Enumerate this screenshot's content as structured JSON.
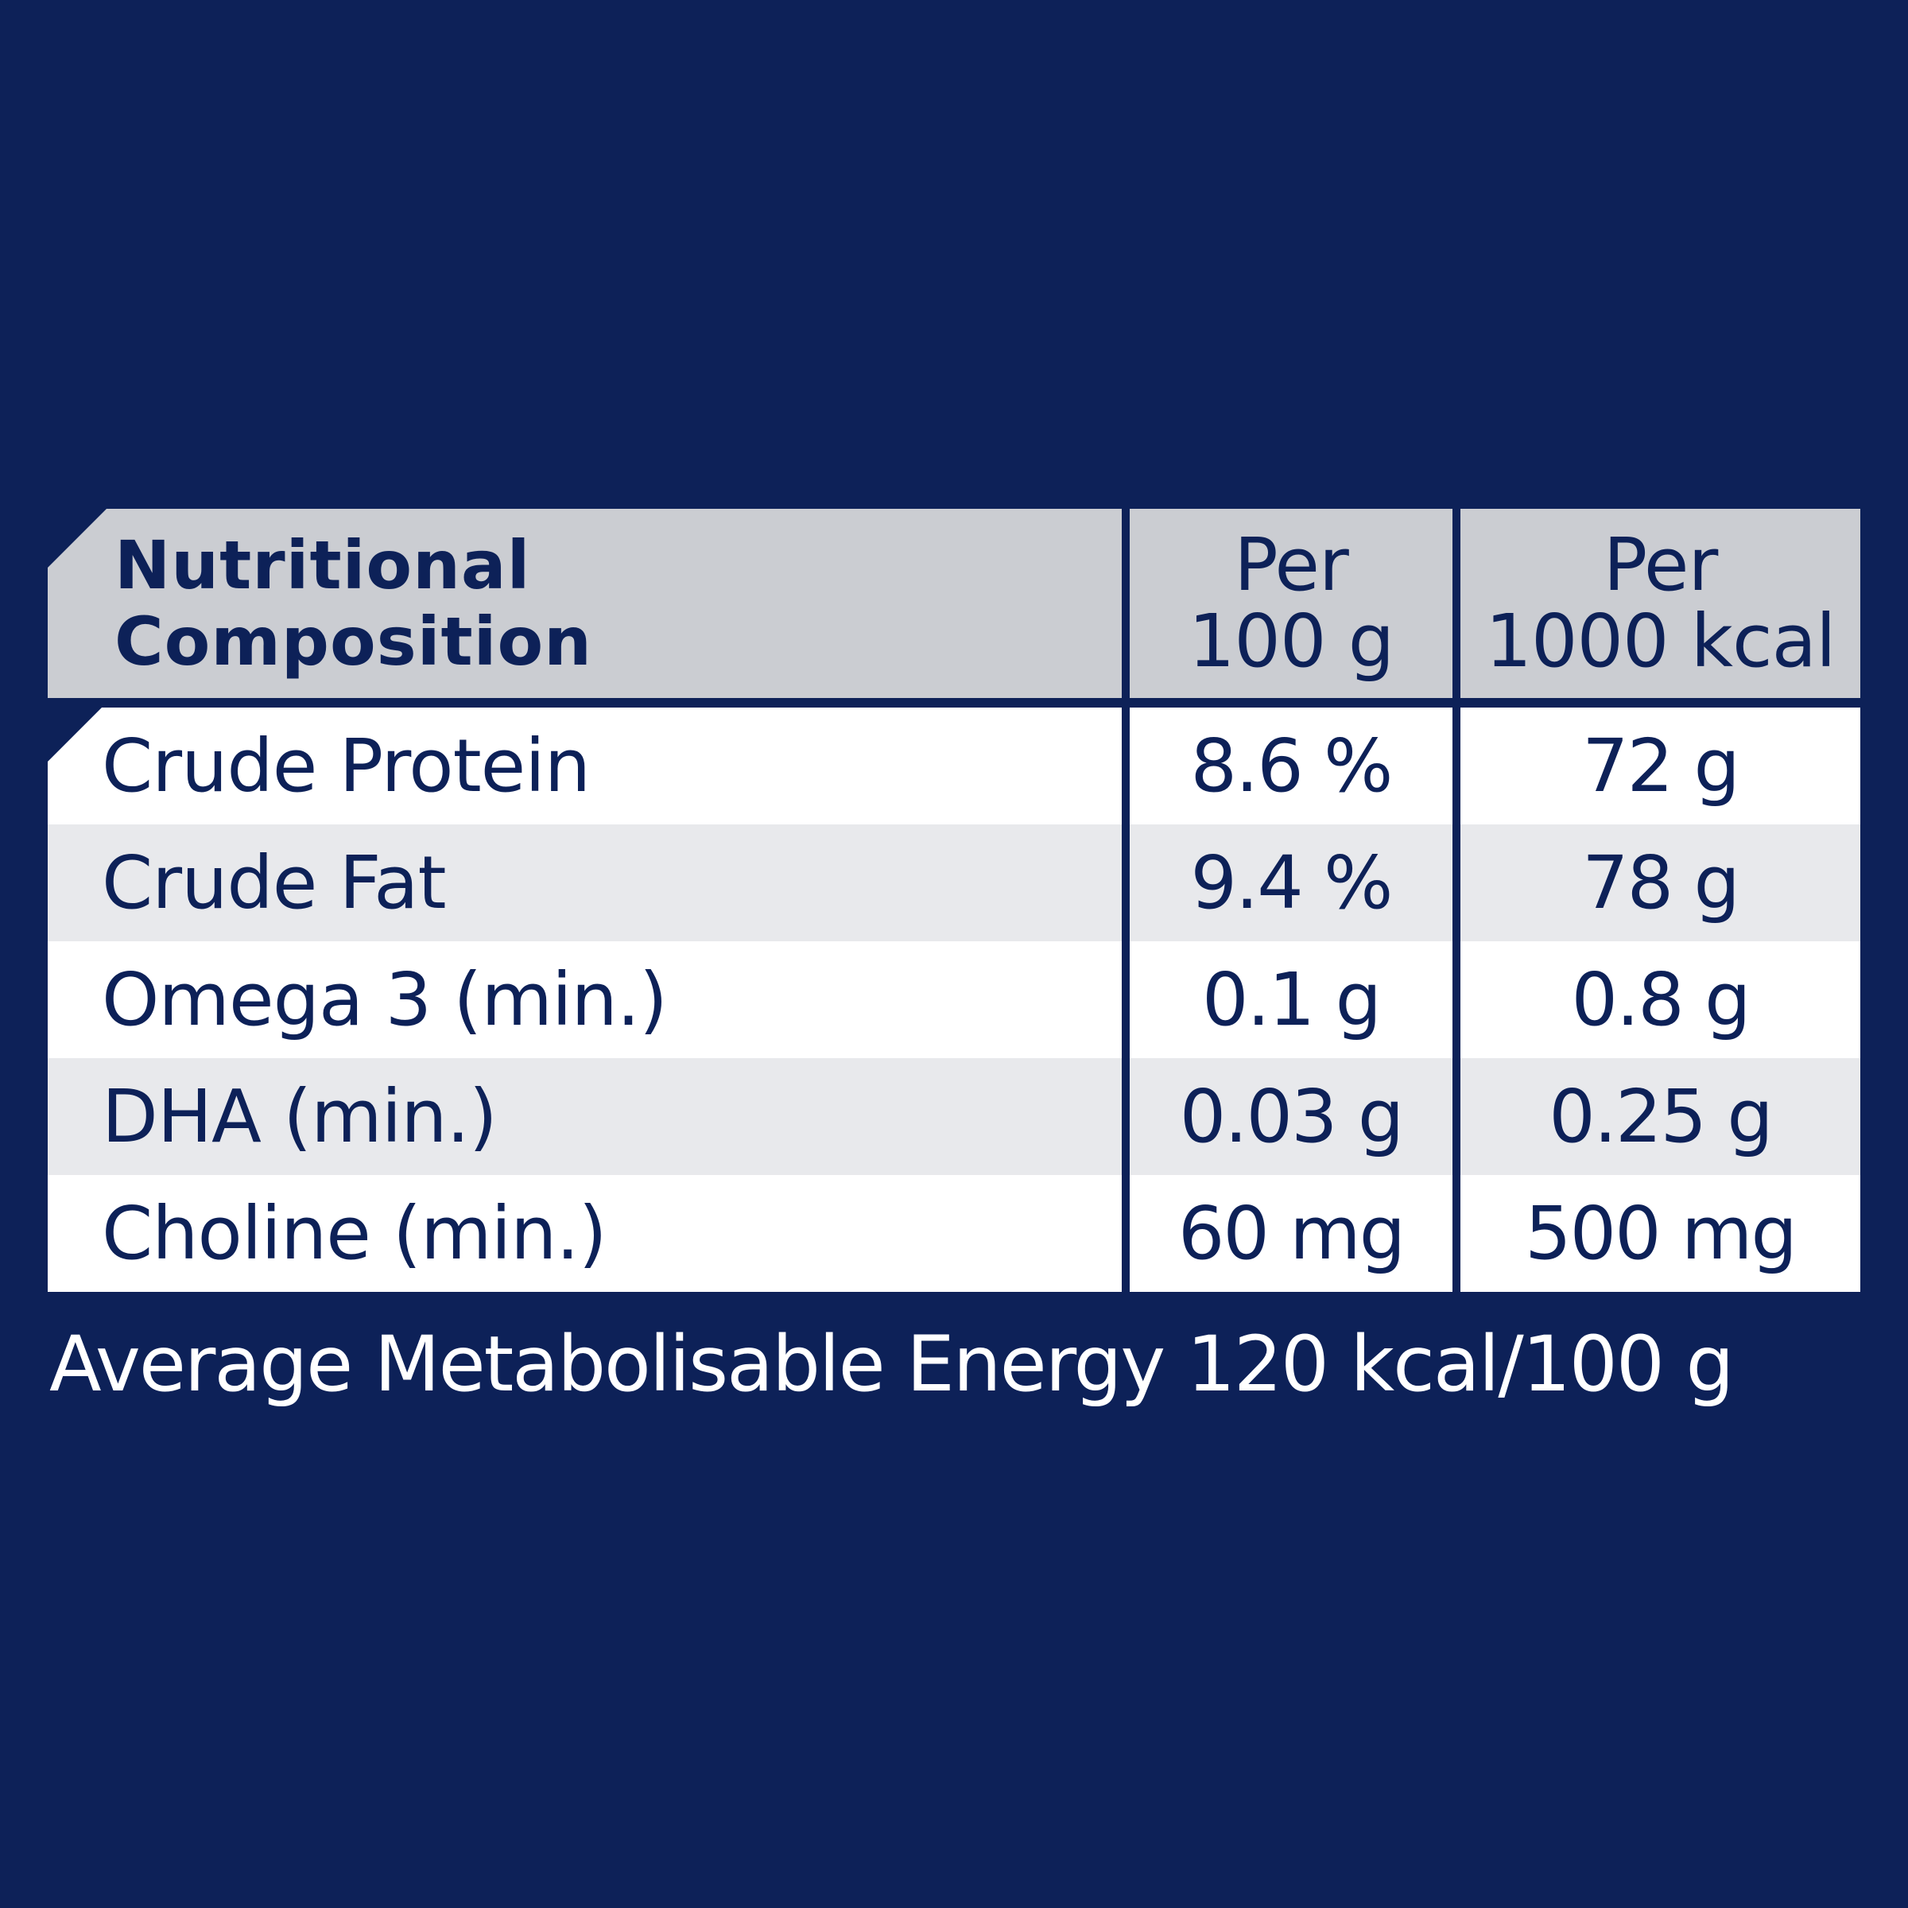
{
  "table": {
    "header": {
      "title_line1": "Nutritional",
      "title_line2": "Composition",
      "col1_line1": "Per",
      "col1_line2": "100 g",
      "col2_line1": "Per",
      "col2_line2": "1000 kcal"
    },
    "rows": [
      {
        "label": "Crude Protein",
        "per_100g": "8.6 %",
        "per_1000kcal": "72 g"
      },
      {
        "label": "Crude Fat",
        "per_100g": "9.4 %",
        "per_1000kcal": "78 g"
      },
      {
        "label": "Omega 3 (min.)",
        "per_100g": "0.1 g",
        "per_1000kcal": "0.8 g"
      },
      {
        "label": "DHA (min.)",
        "per_100g": "0.03 g",
        "per_1000kcal": "0.25 g"
      },
      {
        "label": "Choline (min.)",
        "per_100g": "60 mg",
        "per_1000kcal": "500 mg"
      }
    ]
  },
  "footer": {
    "text": "Average Metabolisable Energy 120 kcal/100 g"
  },
  "colors": {
    "background": "#0d2158",
    "header_cell": "#cbcdd2",
    "row_light": "#ffffff",
    "row_shaded": "#e8e9ec",
    "text": "#0d2158"
  }
}
